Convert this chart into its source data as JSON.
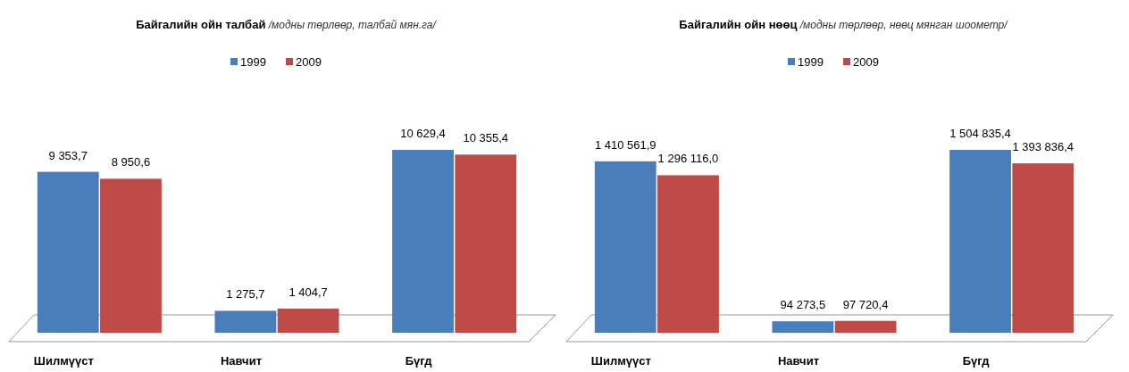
{
  "chart_data": [
    {
      "type": "bar",
      "title": "Байгалийн ойн талбай",
      "subtitle": "/модны төрлөөр, талбай мян.га/",
      "categories": [
        "Шилмүүст",
        "Навчит",
        "Бүгд"
      ],
      "legend": "top",
      "series": [
        {
          "name": "1999",
          "color": "#4a7ebb",
          "values": [
            9353.7,
            1275.7,
            10629.4
          ],
          "value_labels": [
            "9 353,7",
            "1 275,7",
            "10 629,4"
          ]
        },
        {
          "name": "2009",
          "color": "#be4b48",
          "values": [
            8950.6,
            1404.7,
            10355.4
          ],
          "value_labels": [
            "8 950,6",
            "1 404,7",
            "10 355,4"
          ]
        }
      ]
    },
    {
      "type": "bar",
      "title": "Байгалийн ойн нөөц",
      "subtitle": "/модны төрлөөр, нөөц мянган шоометр/",
      "categories": [
        "Шилмүүст",
        "Навчит",
        "Бүгд"
      ],
      "legend": "top",
      "series": [
        {
          "name": "1999",
          "color": "#4a7ebb",
          "values": [
            1410561.9,
            94273.5,
            1504835.4
          ],
          "value_labels": [
            "1 410 561,9",
            "94 273,5",
            "1 504 835,4"
          ]
        },
        {
          "name": "2009",
          "color": "#be4b48",
          "values": [
            1296116.0,
            97720.4,
            1393836.4
          ],
          "value_labels": [
            "1 296 116,0",
            "97 720,4",
            "1 393 836,4"
          ]
        }
      ]
    }
  ]
}
